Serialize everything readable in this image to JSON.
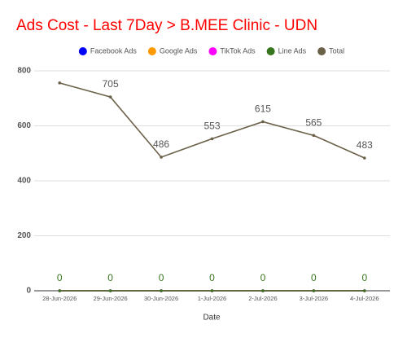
{
  "chart_data": {
    "type": "line",
    "title": "Ads Cost - Last 7Day > B.MEE Clinic - UDN",
    "x_label": "Date",
    "categories": [
      "28-Jun-2026",
      "29-Jun-2026",
      "30-Jun-2026",
      "1-Jul-2026",
      "2-Jul-2026",
      "3-Jul-2026",
      "4-Jul-2026"
    ],
    "series": [
      {
        "name": "Facebook Ads",
        "color": "#0000ff",
        "values": [
          0,
          0,
          0,
          0,
          0,
          0,
          0
        ]
      },
      {
        "name": "Google Ads",
        "color": "#ff9900",
        "values": [
          0,
          0,
          0,
          0,
          0,
          0,
          0
        ]
      },
      {
        "name": "TikTok Ads",
        "color": "#ff00ff",
        "values": [
          0,
          0,
          0,
          0,
          0,
          0,
          0
        ]
      },
      {
        "name": "Line Ads",
        "color": "#38761d",
        "values": [
          0,
          0,
          0,
          0,
          0,
          0,
          0
        ],
        "value_labels": [
          "0",
          "0",
          "0",
          "0",
          "0",
          "0",
          "0"
        ]
      },
      {
        "name": "Total",
        "color": "#6b6149",
        "values": [
          756,
          705,
          486,
          553,
          615,
          565,
          483
        ],
        "value_labels": [
          null,
          "705",
          "486",
          "553",
          "615",
          "565",
          "483"
        ]
      }
    ],
    "ylim": [
      0,
      800
    ],
    "yticks": [
      0,
      200,
      400,
      600,
      800
    ],
    "grid": true,
    "legend": "top"
  }
}
